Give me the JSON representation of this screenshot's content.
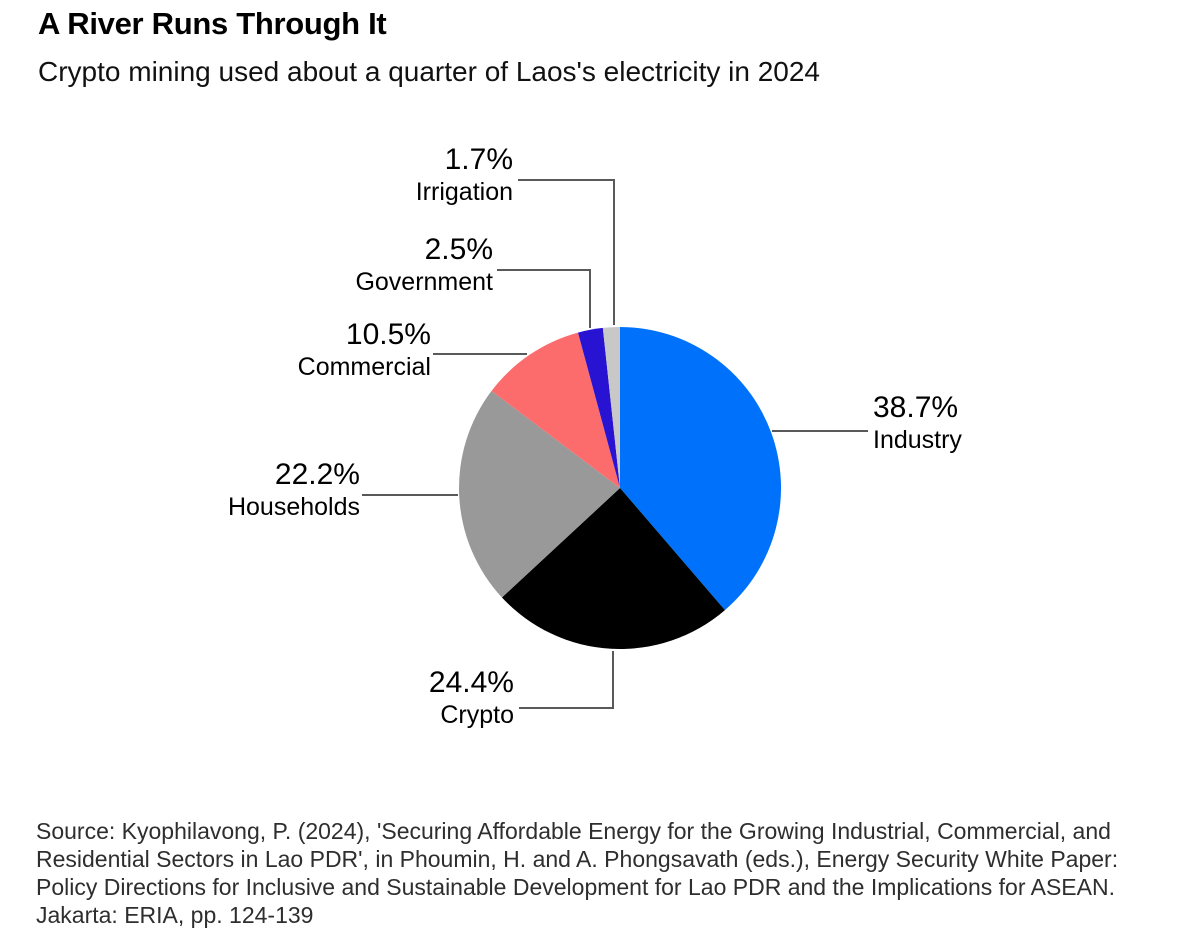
{
  "header": {
    "title": "A River Runs Through It",
    "subtitle": "Crypto mining used about a quarter of Laos's electricity in 2024"
  },
  "chart_data": {
    "type": "pie",
    "title": "A River Runs Through It",
    "subtitle": "Crypto mining used about a quarter of Laos's electricity in 2024",
    "unit": "%",
    "start_angle_deg": 0,
    "direction": "clockwise",
    "legend_position": "callout-labels",
    "slices": [
      {
        "label": "Industry",
        "value": 38.7,
        "pct_label": "38.7%",
        "color": "#0071fb"
      },
      {
        "label": "Crypto",
        "value": 24.4,
        "pct_label": "24.4%",
        "color": "#000000"
      },
      {
        "label": "Households",
        "value": 22.2,
        "pct_label": "22.2%",
        "color": "#999999"
      },
      {
        "label": "Commercial",
        "value": 10.5,
        "pct_label": "10.5%",
        "color": "#fc6c6c"
      },
      {
        "label": "Government",
        "value": 2.5,
        "pct_label": "2.5%",
        "color": "#2813d2"
      },
      {
        "label": "Irrigation",
        "value": 1.7,
        "pct_label": "1.7%",
        "color": "#c8c8c8"
      }
    ],
    "callout_line_color": "#58595b"
  },
  "source": {
    "lines": [
      "Source: Kyophilavong, P. (2024), 'Securing Affordable Energy for the Growing Industrial, Commercial, and",
      "Residential Sectors in Lao PDR', in Phoumin, H. and A. Phongsavath (eds.), Energy Security White Paper:",
      "Policy Directions for Inclusive and Sustainable Development for Lao PDR and the Implications for ASEAN.",
      "Jakarta: ERIA, pp. 124-139"
    ]
  }
}
